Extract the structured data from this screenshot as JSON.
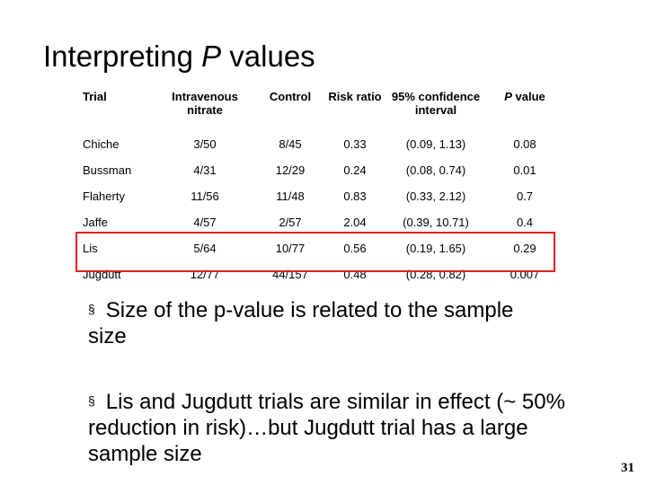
{
  "title": {
    "main": "Interpreting ",
    "italic": "P",
    "rest": " values"
  },
  "table": {
    "headers": {
      "trial": "Trial",
      "intravenous": "Intravenous nitrate",
      "control": "Control",
      "risk_ratio": "Risk ratio",
      "ci": "95% confidence interval",
      "p_italic": "P",
      "p_rest": " value"
    },
    "rows": [
      {
        "trial": "Chiche",
        "iv": "3/50",
        "control": "8/45",
        "rr": "0.33",
        "ci": "(0.09, 1.13)",
        "p": "0.08"
      },
      {
        "trial": "Bussman",
        "iv": "4/31",
        "control": "12/29",
        "rr": "0.24",
        "ci": "(0.08, 0.74)",
        "p": "0.01"
      },
      {
        "trial": "Flaherty",
        "iv": "11/56",
        "control": "11/48",
        "rr": "0.83",
        "ci": "(0.33, 2.12)",
        "p": "0.7"
      },
      {
        "trial": "Jaffe",
        "iv": "4/57",
        "control": "2/57",
        "rr": "2.04",
        "ci": "(0.39, 10.71)",
        "p": "0.4"
      },
      {
        "trial": "Lis",
        "iv": "5/64",
        "control": "10/77",
        "rr": "0.56",
        "ci": "(0.19, 1.65)",
        "p": "0.29"
      },
      {
        "trial": "Jugdutt",
        "iv": "12/77",
        "control": "44/157",
        "rr": "0.48",
        "ci": "(0.28, 0.82)",
        "p": "0.007"
      }
    ]
  },
  "highlight_color": "#e02020",
  "bullets": [
    {
      "mark": "§",
      "text": "Size of the p-value is related to the sample size"
    },
    {
      "mark": "§",
      "text": "Lis and Jugdutt trials are similar in effect (~ 50% reduction in risk)…but Jugdutt trial has a large sample size"
    }
  ],
  "page_number": "31"
}
